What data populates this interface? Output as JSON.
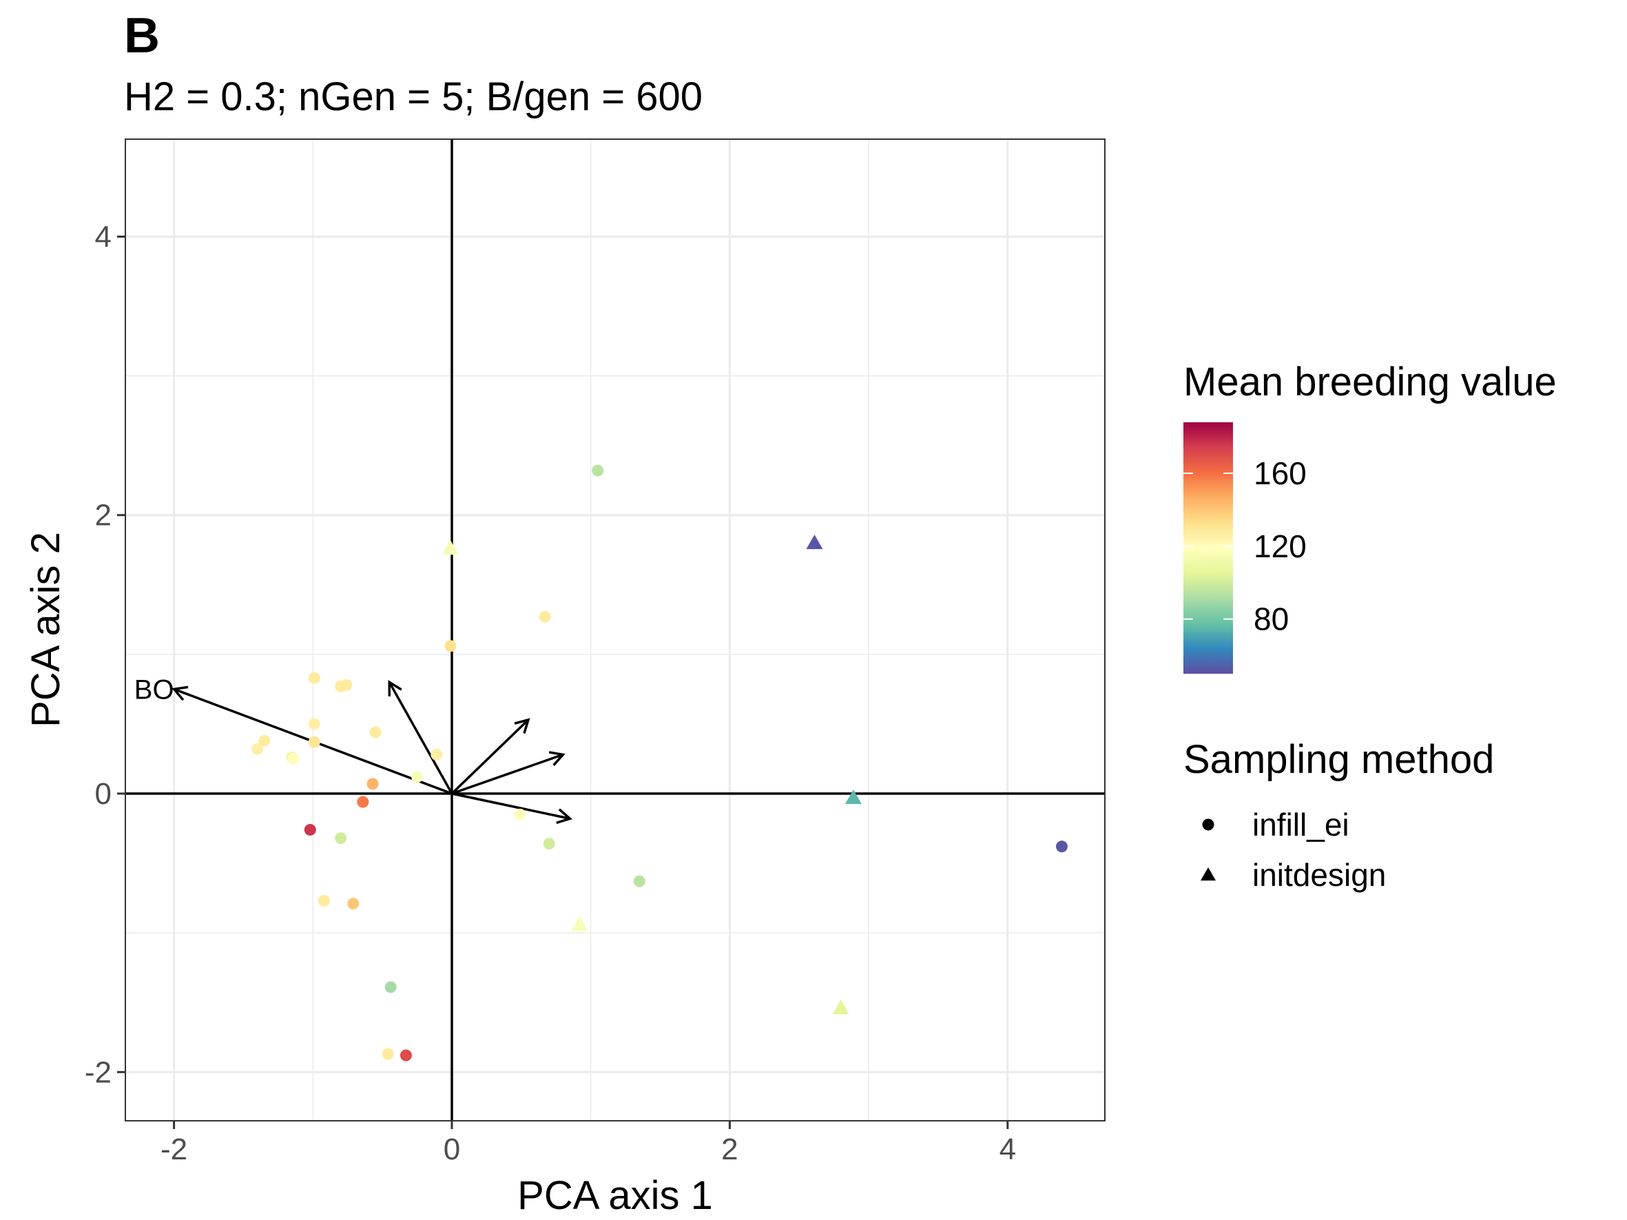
{
  "chart_data": {
    "type": "scatter",
    "panel_tag": "B",
    "title": "H2 = 0.3; nGen = 5; B/gen = 600",
    "xlabel": "PCA axis 1",
    "ylabel": "PCA axis 2",
    "xlim": [
      -2.35,
      4.7
    ],
    "ylim": [
      -2.35,
      4.7
    ],
    "x_ticks": [
      -2,
      0,
      2,
      4
    ],
    "y_ticks": [
      -2,
      0,
      2,
      4
    ],
    "x_tick_labels": [
      "-2",
      "0",
      "2",
      "4"
    ],
    "y_tick_labels": [
      "-2",
      "0",
      "2",
      "4"
    ],
    "grid": true,
    "reference_lines": {
      "x": 0,
      "y": 0
    },
    "color_legend": {
      "title": "Mean breeding value",
      "min": 50,
      "max": 188,
      "ticks": [
        80,
        120,
        160
      ],
      "tick_labels": [
        "80",
        "120",
        "160"
      ],
      "palette": [
        "#5E4FA2",
        "#3288BD",
        "#66C2A5",
        "#ABDDA4",
        "#E6F598",
        "#FFFFBF",
        "#FEE08B",
        "#FDAE61",
        "#F46D43",
        "#D53E4F",
        "#9E0142"
      ]
    },
    "shape_legend": {
      "title": "Sampling method",
      "items": [
        {
          "label": "infill_ei",
          "shape": "circle"
        },
        {
          "label": "initdesign",
          "shape": "triangle"
        }
      ]
    },
    "arrows": [
      {
        "label": "BO",
        "x": -2.0,
        "y": 0.75
      },
      {
        "label": "",
        "x": -0.45,
        "y": 0.8
      },
      {
        "label": "",
        "x": 0.55,
        "y": 0.53
      },
      {
        "label": "",
        "x": 0.8,
        "y": 0.28
      },
      {
        "label": "",
        "x": 0.85,
        "y": -0.18
      }
    ],
    "series": [
      {
        "shape": "circle",
        "points": [
          {
            "x": 1.05,
            "y": 2.32,
            "value": 95
          },
          {
            "x": 0.67,
            "y": 1.27,
            "value": 128
          },
          {
            "x": -0.01,
            "y": 1.06,
            "value": 132
          },
          {
            "x": -0.99,
            "y": 0.83,
            "value": 128
          },
          {
            "x": -0.8,
            "y": 0.77,
            "value": 128
          },
          {
            "x": -0.76,
            "y": 0.78,
            "value": 128
          },
          {
            "x": -0.99,
            "y": 0.5,
            "value": 126
          },
          {
            "x": -0.55,
            "y": 0.44,
            "value": 128
          },
          {
            "x": -1.35,
            "y": 0.38,
            "value": 128
          },
          {
            "x": -1.4,
            "y": 0.32,
            "value": 126
          },
          {
            "x": -0.99,
            "y": 0.37,
            "value": 130
          },
          {
            "x": -1.15,
            "y": 0.26,
            "value": 110
          },
          {
            "x": -1.14,
            "y": 0.25,
            "value": 120
          },
          {
            "x": -0.11,
            "y": 0.28,
            "value": 126
          },
          {
            "x": -0.25,
            "y": 0.12,
            "value": 116
          },
          {
            "x": -0.57,
            "y": 0.07,
            "value": 145
          },
          {
            "x": -0.64,
            "y": -0.06,
            "value": 158
          },
          {
            "x": -1.02,
            "y": -0.26,
            "value": 176
          },
          {
            "x": -0.8,
            "y": -0.32,
            "value": 100
          },
          {
            "x": 0.49,
            "y": -0.15,
            "value": 118
          },
          {
            "x": 0.7,
            "y": -0.36,
            "value": 100
          },
          {
            "x": 1.35,
            "y": -0.63,
            "value": 95
          },
          {
            "x": -0.92,
            "y": -0.77,
            "value": 128
          },
          {
            "x": -0.71,
            "y": -0.79,
            "value": 140
          },
          {
            "x": -0.44,
            "y": -1.39,
            "value": 90
          },
          {
            "x": -0.46,
            "y": -1.87,
            "value": 128
          },
          {
            "x": -0.33,
            "y": -1.88,
            "value": 170
          },
          {
            "x": 4.39,
            "y": -0.38,
            "value": 52
          }
        ]
      },
      {
        "shape": "triangle",
        "points": [
          {
            "x": -0.01,
            "y": 1.76,
            "value": 115
          },
          {
            "x": 2.61,
            "y": 1.8,
            "value": 52
          },
          {
            "x": 2.89,
            "y": -0.03,
            "value": 75
          },
          {
            "x": 0.92,
            "y": -0.94,
            "value": 115
          },
          {
            "x": 2.8,
            "y": -1.54,
            "value": 105
          }
        ]
      }
    ]
  }
}
